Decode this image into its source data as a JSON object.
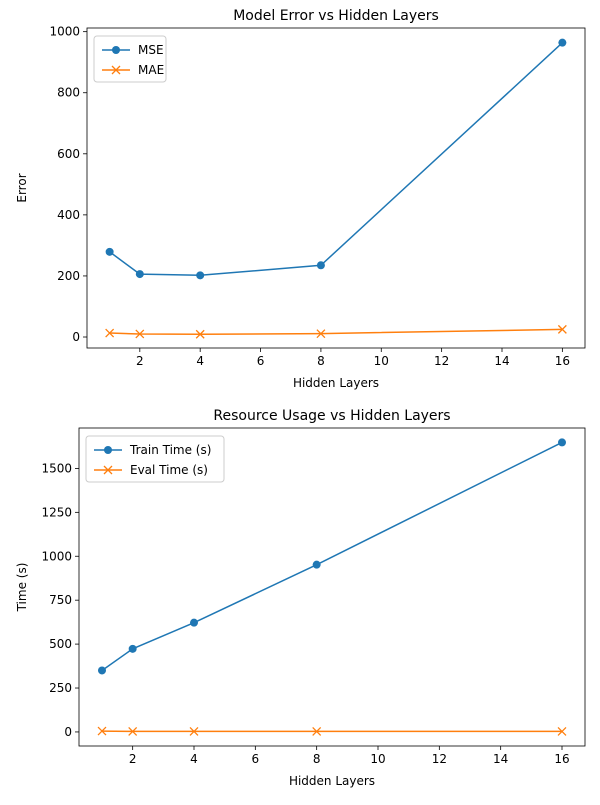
{
  "chart_data": [
    {
      "type": "line",
      "title": "Model Error vs Hidden Layers",
      "xlabel": "Hidden Layers",
      "ylabel": "Error",
      "xlim": [
        0.25,
        16.75
      ],
      "ylim": [
        -36,
        1012
      ],
      "xticks": [
        2,
        4,
        6,
        8,
        10,
        12,
        14,
        16
      ],
      "yticks": [
        0,
        200,
        400,
        600,
        800,
        1000
      ],
      "ytick_labels": [
        "0",
        "200",
        "400",
        "600",
        "800",
        "1000"
      ],
      "x": [
        1,
        2,
        4,
        8,
        16
      ],
      "grid": false,
      "legend": "top-left",
      "series": [
        {
          "name": "MSE",
          "color": "#1f77b4",
          "marker": "circle",
          "values": [
            279,
            206,
            202,
            235,
            964
          ]
        },
        {
          "name": "MAE",
          "color": "#ff7f0e",
          "marker": "x",
          "values": [
            13,
            10,
            9,
            11,
            25
          ]
        }
      ]
    },
    {
      "type": "line",
      "title": "Resource Usage vs Hidden Layers",
      "xlabel": "Hidden Layers",
      "ylabel": "Time (s)",
      "xlim": [
        0.25,
        16.75
      ],
      "ylim": [
        -80,
        1730
      ],
      "xticks": [
        2,
        4,
        6,
        8,
        10,
        12,
        14,
        16
      ],
      "yticks": [
        0,
        250,
        500,
        750,
        1000,
        1250,
        1500
      ],
      "ytick_labels": [
        "0",
        "250",
        "500",
        "750",
        "1000",
        "1250",
        "1500"
      ],
      "x": [
        1,
        2,
        4,
        8,
        16
      ],
      "grid": false,
      "legend": "top-left",
      "series": [
        {
          "name": "Train Time (s)",
          "color": "#1f77b4",
          "marker": "circle",
          "values": [
            350,
            473,
            622,
            952,
            1648
          ]
        },
        {
          "name": "Eval Time (s)",
          "color": "#ff7f0e",
          "marker": "x",
          "values": [
            5,
            3,
            3,
            3,
            3
          ]
        }
      ]
    }
  ]
}
